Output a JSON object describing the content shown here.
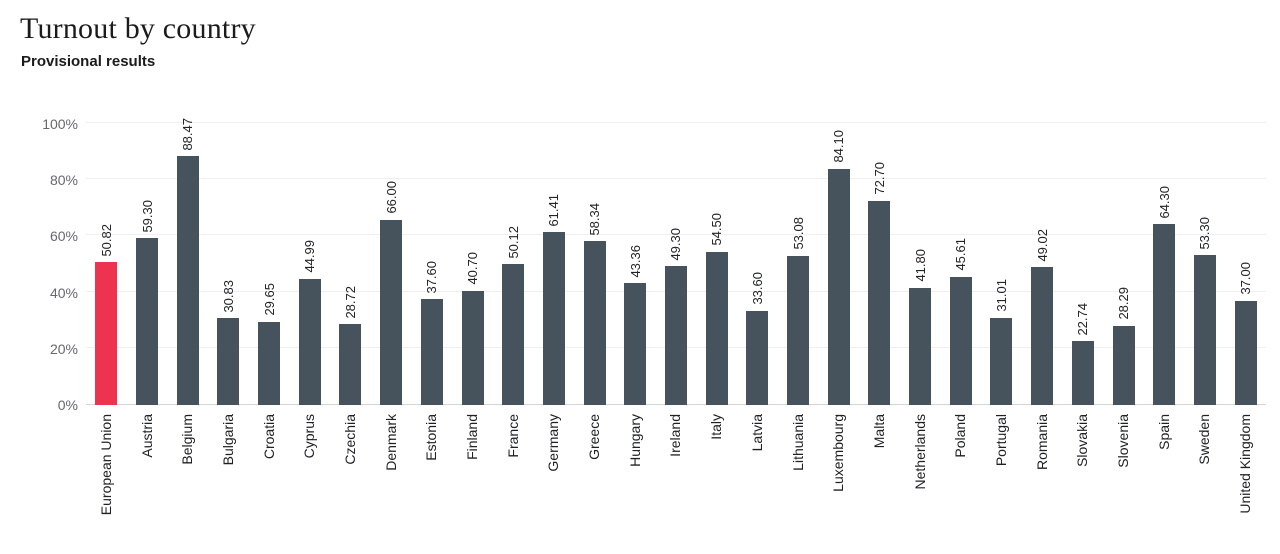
{
  "title": "Turnout by country",
  "subtitle": "Provisional results",
  "chart_data": {
    "type": "bar",
    "title": "Turnout by country",
    "subtitle": "Provisional results",
    "categories": [
      "European Union",
      "Austria",
      "Belgium",
      "Bulgaria",
      "Croatia",
      "Cyprus",
      "Czechia",
      "Denmark",
      "Estonia",
      "Finland",
      "France",
      "Germany",
      "Greece",
      "Hungary",
      "Ireland",
      "Italy",
      "Latvia",
      "Lithuania",
      "Luxembourg",
      "Malta",
      "Netherlands",
      "Poland",
      "Portugal",
      "Romania",
      "Slovakia",
      "Slovenia",
      "Spain",
      "Sweden",
      "United Kingdom"
    ],
    "values": [
      50.82,
      59.3,
      88.47,
      30.83,
      29.65,
      44.99,
      28.72,
      66.0,
      37.6,
      40.7,
      50.12,
      61.41,
      58.34,
      43.36,
      49.3,
      54.5,
      33.6,
      53.08,
      84.1,
      72.7,
      41.8,
      45.61,
      31.01,
      49.02,
      22.74,
      28.29,
      64.3,
      53.3,
      37.0
    ],
    "value_label_decimals": 2,
    "xlabel": "",
    "ylabel": "",
    "ylim": [
      0,
      100
    ],
    "yticks": [
      0,
      20,
      40,
      60,
      80,
      100
    ],
    "ytick_labels": [
      "0%",
      "20%",
      "40%",
      "60%",
      "80%",
      "100%"
    ],
    "grid": true,
    "legend": "none",
    "bar_label_rotation": -90,
    "xtick_rotation": -90,
    "highlight_category": "European Union",
    "colors": {
      "highlight_bar": "#ee3351",
      "bar": "#46525c",
      "gridline": "#efeff3",
      "axis_line": "#d4d4da",
      "ytick_text": "#67676c",
      "label_text": "#222326",
      "title_text": "#1b1b1b"
    }
  }
}
